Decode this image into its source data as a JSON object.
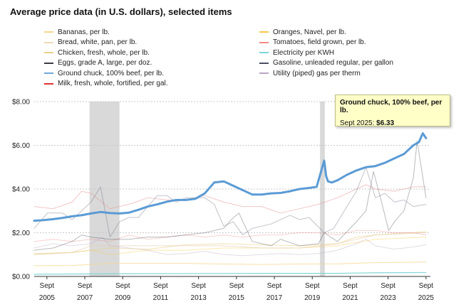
{
  "chart_data": {
    "type": "line",
    "title": "Average price data (in U.S. dollars), selected items",
    "xlabel": "",
    "ylabel": "",
    "x_range": [
      2005.0,
      2025.9
    ],
    "ylim": [
      0,
      8
    ],
    "y_ticks": [
      "$0.00",
      "$2.00",
      "$4.00",
      "$6.00",
      "$8.00"
    ],
    "y_tick_values": [
      0,
      2,
      4,
      6,
      8
    ],
    "x_ticks": [
      {
        "value": 2005.67,
        "line1": "Sept",
        "line2": "2005"
      },
      {
        "value": 2007.67,
        "line1": "Sept",
        "line2": "2007"
      },
      {
        "value": 2009.67,
        "line1": "Sept",
        "line2": "2009"
      },
      {
        "value": 2011.67,
        "line1": "Sept",
        "line2": "2011"
      },
      {
        "value": 2013.67,
        "line1": "Sept",
        "line2": "2013"
      },
      {
        "value": 2015.67,
        "line1": "Sept",
        "line2": "2015"
      },
      {
        "value": 2017.67,
        "line1": "Sept",
        "line2": "2017"
      },
      {
        "value": 2019.67,
        "line1": "Sept",
        "line2": "2019"
      },
      {
        "value": 2021.67,
        "line1": "Sept",
        "line2": "2021"
      },
      {
        "value": 2023.67,
        "line1": "Sept",
        "line2": "2023"
      },
      {
        "value": 2025.67,
        "line1": "Sept",
        "line2": "2025"
      }
    ],
    "recession_bands": [
      [
        2007.92,
        2009.5
      ],
      [
        2020.08,
        2020.33
      ]
    ],
    "grid": "horizontal",
    "legend_position": "top",
    "legend_left": [
      {
        "name": "Bananas, per lb.",
        "color": "#f6d78e"
      },
      {
        "name": "Bread, white, pan, per lb.",
        "color": "#f0d8b8"
      },
      {
        "name": "Chicken, fresh, whole, per lb.",
        "color": "#e8cf86"
      },
      {
        "name": "Eggs, grade A, large, per doz.",
        "color": "#3a3a44"
      },
      {
        "name": "Ground chuck, 100% beef, per lb.",
        "color": "#6fa8dc"
      },
      {
        "name": "Milk, fresh, whole, fortified, per gal.",
        "color": "#e03030"
      }
    ],
    "legend_right": [
      {
        "name": "Oranges, Navel, per lb.",
        "color": "#f6c94a"
      },
      {
        "name": "Tomatoes, field grown, per lb.",
        "color": "#f28a8a"
      },
      {
        "name": "Electricity per KWH",
        "color": "#7fd4d4"
      },
      {
        "name": "Gasoline, unleaded regular, per gallon",
        "color": "#4a4f63"
      },
      {
        "name": "Utility (piped) gas per therm",
        "color": "#b9a4c4"
      }
    ],
    "series": [
      {
        "name": "Ground chuck, 100% beef, per lb.",
        "color": "#5b9bd5",
        "width": 3,
        "opacity": 1,
        "x": [
          2005.0,
          2005.5,
          2006.0,
          2006.5,
          2007.0,
          2007.5,
          2008.0,
          2008.5,
          2009.0,
          2009.5,
          2010.0,
          2010.5,
          2011.0,
          2011.5,
          2012.0,
          2012.5,
          2013.0,
          2013.5,
          2014.0,
          2014.5,
          2015.0,
          2015.5,
          2016.0,
          2016.5,
          2017.0,
          2017.5,
          2018.0,
          2018.5,
          2019.0,
          2019.5,
          2019.9,
          2020.3,
          2020.4,
          2020.5,
          2020.7,
          2021.0,
          2021.5,
          2022.0,
          2022.5,
          2023.0,
          2023.5,
          2024.0,
          2024.5,
          2025.0,
          2025.3,
          2025.5,
          2025.67
        ],
        "y": [
          2.55,
          2.58,
          2.62,
          2.68,
          2.75,
          2.8,
          2.88,
          2.95,
          2.9,
          2.88,
          2.92,
          3.05,
          3.2,
          3.3,
          3.42,
          3.5,
          3.5,
          3.55,
          3.8,
          4.3,
          4.35,
          4.15,
          3.95,
          3.75,
          3.75,
          3.8,
          3.82,
          3.9,
          4.0,
          4.05,
          4.1,
          5.3,
          4.6,
          4.35,
          4.3,
          4.4,
          4.65,
          4.85,
          5.0,
          5.05,
          5.2,
          5.4,
          5.6,
          6.0,
          6.15,
          6.55,
          6.33
        ]
      },
      {
        "name": "Gasoline, unleaded regular, per gallon",
        "color": "#777b8c",
        "width": 1,
        "opacity": 0.45,
        "x": [
          2005.0,
          2005.7,
          2006.5,
          2007.0,
          2007.5,
          2008.0,
          2008.5,
          2009.0,
          2009.5,
          2010.0,
          2010.5,
          2011.0,
          2011.5,
          2012.0,
          2012.5,
          2013.0,
          2013.5,
          2014.0,
          2014.5,
          2015.0,
          2015.5,
          2016.0,
          2016.5,
          2017.0,
          2017.5,
          2018.0,
          2018.5,
          2019.0,
          2019.5,
          2020.3,
          2020.8,
          2021.5,
          2022.0,
          2022.5,
          2023.0,
          2023.5,
          2024.0,
          2024.5,
          2025.0,
          2025.67
        ],
        "y": [
          2.2,
          2.9,
          2.9,
          2.6,
          3.0,
          3.4,
          4.1,
          1.8,
          2.5,
          2.7,
          2.7,
          3.2,
          3.7,
          3.7,
          3.4,
          3.6,
          3.6,
          3.6,
          3.3,
          2.3,
          2.5,
          1.9,
          2.2,
          2.3,
          2.4,
          2.6,
          2.8,
          2.6,
          2.7,
          2.0,
          2.2,
          3.2,
          3.9,
          5.0,
          3.6,
          3.8,
          3.4,
          3.5,
          3.2,
          3.3
        ]
      },
      {
        "name": "Eggs, grade A, large, per doz.",
        "color": "#3a3a44",
        "width": 1,
        "opacity": 0.35,
        "x": [
          2005.0,
          2006.0,
          2007.0,
          2007.5,
          2008.0,
          2009.0,
          2010.0,
          2011.0,
          2012.0,
          2013.0,
          2014.0,
          2015.0,
          2015.4,
          2015.8,
          2016.5,
          2017.5,
          2018.0,
          2019.0,
          2020.0,
          2020.3,
          2021.0,
          2022.0,
          2022.5,
          2022.9,
          2023.3,
          2023.7,
          2024.0,
          2024.5,
          2025.0,
          2025.2,
          2025.67
        ],
        "y": [
          1.2,
          1.3,
          1.6,
          1.9,
          1.8,
          1.7,
          1.7,
          1.8,
          1.8,
          1.9,
          2.0,
          2.2,
          2.6,
          2.9,
          1.6,
          1.4,
          1.7,
          1.4,
          1.5,
          2.0,
          1.6,
          2.5,
          3.0,
          4.8,
          3.5,
          2.1,
          2.5,
          3.0,
          4.5,
          6.2,
          3.6
        ]
      },
      {
        "name": "Milk, fresh, whole, fortified, per gal.",
        "color": "#e8a0a0",
        "width": 1,
        "opacity": 0.6,
        "x": [
          2005.0,
          2006.0,
          2007.0,
          2007.5,
          2008.0,
          2009.0,
          2010.0,
          2011.0,
          2012.0,
          2013.0,
          2014.0,
          2015.0,
          2016.0,
          2017.0,
          2018.0,
          2019.0,
          2020.0,
          2021.0,
          2022.0,
          2022.5,
          2023.0,
          2024.0,
          2025.0,
          2025.67
        ],
        "y": [
          3.2,
          3.1,
          3.4,
          3.9,
          3.8,
          3.1,
          3.3,
          3.6,
          3.5,
          3.5,
          3.7,
          3.4,
          3.2,
          3.2,
          2.9,
          3.1,
          3.3,
          3.6,
          4.0,
          4.2,
          4.0,
          3.9,
          4.1,
          4.1
        ]
      },
      {
        "name": "Tomatoes, field grown, per lb.",
        "color": "#f28a8a",
        "width": 1,
        "opacity": 0.4,
        "x": [
          2005.0,
          2006.0,
          2007.0,
          2008.0,
          2009.0,
          2010.0,
          2011.0,
          2012.0,
          2013.0,
          2014.0,
          2015.0,
          2016.0,
          2017.0,
          2018.0,
          2019.0,
          2020.0,
          2021.0,
          2022.0,
          2023.0,
          2024.0,
          2025.0,
          2025.67
        ],
        "y": [
          1.6,
          1.7,
          1.6,
          1.7,
          1.6,
          1.9,
          1.7,
          1.8,
          1.9,
          1.8,
          1.9,
          1.8,
          1.9,
          1.9,
          2.0,
          2.0,
          1.9,
          2.1,
          2.1,
          2.0,
          2.0,
          1.9
        ]
      },
      {
        "name": "Bread, white, pan, per lb.",
        "color": "#e6c9a8",
        "width": 1,
        "opacity": 0.6,
        "x": [
          2005.0,
          2007.0,
          2008.0,
          2009.0,
          2011.0,
          2013.0,
          2015.0,
          2017.0,
          2019.0,
          2021.0,
          2022.0,
          2023.0,
          2025.67
        ],
        "y": [
          1.0,
          1.1,
          1.4,
          1.4,
          1.4,
          1.4,
          1.4,
          1.3,
          1.3,
          1.5,
          1.7,
          1.9,
          2.0
        ]
      },
      {
        "name": "Chicken, fresh, whole, per lb.",
        "color": "#e8cf86",
        "width": 1,
        "opacity": 0.6,
        "x": [
          2005.0,
          2007.0,
          2009.0,
          2011.0,
          2013.0,
          2015.0,
          2017.0,
          2019.0,
          2021.0,
          2022.0,
          2023.0,
          2025.67
        ],
        "y": [
          1.05,
          1.1,
          1.3,
          1.25,
          1.45,
          1.5,
          1.45,
          1.4,
          1.5,
          1.8,
          1.9,
          2.05
        ]
      },
      {
        "name": "Utility (piped) gas per therm",
        "color": "#b9a4c4",
        "width": 1,
        "opacity": 0.4,
        "x": [
          2005.0,
          2006.0,
          2007.0,
          2008.0,
          2008.6,
          2009.0,
          2010.0,
          2011.0,
          2012.0,
          2013.0,
          2014.0,
          2015.0,
          2016.0,
          2017.0,
          2018.0,
          2019.0,
          2020.0,
          2021.0,
          2022.0,
          2022.5,
          2023.0,
          2024.0,
          2025.0,
          2025.67
        ],
        "y": [
          1.3,
          1.5,
          1.4,
          1.5,
          1.8,
          1.4,
          1.3,
          1.2,
          1.0,
          1.05,
          1.15,
          1.0,
          0.95,
          1.0,
          1.05,
          1.0,
          1.05,
          1.2,
          1.5,
          1.7,
          1.4,
          1.25,
          1.35,
          1.45
        ]
      },
      {
        "name": "Oranges, Navel, per lb.",
        "color": "#f6c94a",
        "width": 1,
        "opacity": 0.45,
        "x": [
          2005.0,
          2007.0,
          2008.0,
          2009.0,
          2011.0,
          2013.0,
          2015.0,
          2017.0,
          2019.0,
          2021.0,
          2023.0,
          2025.67
        ],
        "y": [
          1.0,
          1.1,
          1.2,
          1.0,
          1.2,
          1.2,
          1.3,
          1.3,
          1.3,
          1.4,
          1.7,
          1.8
        ]
      },
      {
        "name": "Bananas, per lb.",
        "color": "#f6d78e",
        "width": 1,
        "opacity": 0.8,
        "x": [
          2005.0,
          2007.0,
          2009.0,
          2011.0,
          2013.0,
          2015.0,
          2017.0,
          2019.0,
          2021.0,
          2023.0,
          2025.67
        ],
        "y": [
          0.49,
          0.5,
          0.6,
          0.6,
          0.6,
          0.57,
          0.55,
          0.57,
          0.58,
          0.63,
          0.66
        ]
      },
      {
        "name": "Electricity per KWH",
        "color": "#7fd4d4",
        "width": 1.3,
        "opacity": 0.9,
        "x": [
          2005.0,
          2009.0,
          2013.0,
          2017.0,
          2021.0,
          2023.0,
          2025.67
        ],
        "y": [
          0.1,
          0.12,
          0.13,
          0.14,
          0.14,
          0.17,
          0.18
        ]
      }
    ]
  },
  "tooltip": {
    "title": "Ground chuck, 100% beef, per lb.",
    "label": "Sept 2025:",
    "value": "$6.33"
  }
}
